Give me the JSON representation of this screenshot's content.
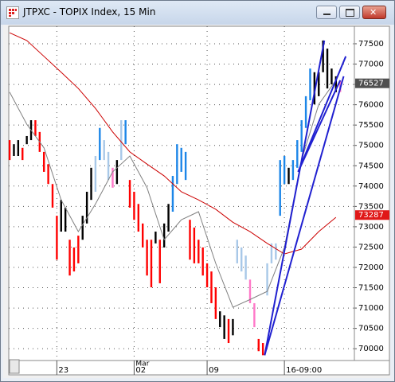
{
  "window": {
    "title": "JTPXC - TOPIX Index, 15 Min"
  },
  "chart_data": {
    "type": "range_bar",
    "high": [
      75130,
      75030,
      75130,
      74940,
      75230,
      75620,
      75620,
      75330,
      74840,
      74540,
      74050,
      73270,
      73660,
      73470,
      72680,
      72490,
      72780,
      73270,
      73860,
      74450,
      74740,
      75430,
      75130,
      74840,
      74450,
      74640,
      75620,
      75620,
      74150,
      73860,
      73560,
      73080,
      72680,
      72680,
      72880,
      72680,
      73080,
      73560,
      74250,
      75030,
      74940,
      74840,
      73170,
      72980,
      72680,
      72490,
      72100,
      71900,
      71510,
      70920,
      70820,
      70730,
      70730,
      72680,
      72490,
      72290,
      71700,
      71120,
      70240,
      70140,
      72100,
      72590,
      72590,
      74640,
      74740,
      74450,
      74640,
      75130,
      75620,
      76210,
      76890,
      76800,
      76800,
      77580,
      77380,
      76890,
      76700,
      76600
    ],
    "low": [
      74640,
      74740,
      74740,
      74640,
      75030,
      75130,
      75230,
      74840,
      74350,
      74050,
      73470,
      72190,
      72880,
      72880,
      71800,
      71900,
      72100,
      72680,
      73080,
      73660,
      73860,
      74640,
      74640,
      74150,
      73960,
      74050,
      74640,
      75030,
      73470,
      73170,
      72880,
      72490,
      71800,
      71510,
      72590,
      71610,
      72490,
      72880,
      73370,
      74050,
      74350,
      74150,
      72190,
      72100,
      72100,
      71800,
      71510,
      71120,
      70730,
      70530,
      70240,
      70140,
      70330,
      72100,
      71900,
      71700,
      71120,
      70530,
      69940,
      69840,
      71310,
      72100,
      72190,
      73270,
      74050,
      74050,
      74150,
      74450,
      74840,
      75430,
      76110,
      76010,
      76210,
      76800,
      76400,
      76500,
      76310,
      76310
    ],
    "colors": [
      "#ff0000",
      "#000000",
      "#000000",
      "#ff0000",
      "#000000",
      "#000000",
      "#ff0000",
      "#ff0000",
      "#ff0000",
      "#ff0000",
      "#ff0000",
      "#ff0000",
      "#000000",
      "#000000",
      "#ff0000",
      "#ff0000",
      "#ff0000",
      "#000000",
      "#000000",
      "#000000",
      "#a8c8e8",
      "#1c86e8",
      "#a8c8e8",
      "#a8c8e8",
      "#ff78c8",
      "#000000",
      "#a8c8e8",
      "#1c86e8",
      "#ff0000",
      "#ff0000",
      "#ff0000",
      "#ff0000",
      "#ff0000",
      "#ff0000",
      "#000000",
      "#ff0000",
      "#000000",
      "#000000",
      "#1c86e8",
      "#1c86e8",
      "#1c86e8",
      "#1c86e8",
      "#ff0000",
      "#ff0000",
      "#ff0000",
      "#ff0000",
      "#ff0000",
      "#ff0000",
      "#ff0000",
      "#000000",
      "#000000",
      "#ff0000",
      "#000000",
      "#a8c8e8",
      "#a8c8e8",
      "#a8c8e8",
      "#ff78c8",
      "#ff78c8",
      "#ff0000",
      "#ff0000",
      "#a8c8e8",
      "#a8c8e8",
      "#a8c8e8",
      "#1c86e8",
      "#1c86e8",
      "#000000",
      "#1c86e8",
      "#1c86e8",
      "#1c86e8",
      "#1c86e8",
      "#1c86e8",
      "#000000",
      "#000000",
      "#000000",
      "#000000",
      "#000000",
      "#000000",
      "#ff78c8"
    ],
    "lines": [
      {
        "color": "#808080",
        "x": [
          0,
          4,
          8,
          12,
          16,
          20,
          24,
          28,
          32,
          36,
          40,
          44,
          48,
          52,
          56,
          60,
          64,
          68,
          72,
          76
        ],
        "values": [
          76310,
          75520,
          74940,
          73660,
          72880,
          73560,
          74350,
          74740,
          73960,
          72680,
          73170,
          73370,
          72100,
          71020,
          71210,
          71410,
          72490,
          74640,
          76010,
          76600
        ]
      },
      {
        "color": "#cc0000",
        "x": [
          0,
          4,
          8,
          12,
          16,
          20,
          24,
          28,
          32,
          36,
          40,
          44,
          48,
          52,
          56,
          60,
          64,
          68,
          72,
          76
        ],
        "values": [
          77770,
          77580,
          77190,
          76800,
          76400,
          75910,
          75330,
          74840,
          74540,
          74250,
          73860,
          73660,
          73430,
          73110,
          72880,
          72590,
          72330,
          72450,
          72880,
          73230
        ]
      }
    ],
    "trendlines": [
      {
        "color": "#2020d0",
        "x": [
          59.4,
          73.3
        ],
        "values": [
          69840,
          77580
        ]
      },
      {
        "color": "#2020d0",
        "x": [
          59.4,
          77.8
        ],
        "values": [
          69840,
          76700
        ]
      },
      {
        "color": "#2020d0",
        "x": [
          67.2,
          78.3
        ],
        "values": [
          74350,
          77190
        ]
      },
      {
        "color": "#2020d0",
        "x": [
          67.2,
          77
        ],
        "values": [
          74350,
          76600
        ]
      }
    ],
    "price_tags": [
      {
        "value": 76527,
        "color": "#505050"
      },
      {
        "value": 73287,
        "color": "#e01818"
      }
    ],
    "xlim": [
      -0.2,
      80.3
    ],
    "ylim": [
      69710,
      77930
    ],
    "yticks": [
      70000,
      70500,
      71000,
      71500,
      72000,
      72500,
      73000,
      73500,
      74000,
      74500,
      75000,
      75500,
      76000,
      76500,
      77000,
      77500
    ],
    "xticks": [
      {
        "value": 11,
        "label": "23"
      },
      {
        "value": 29,
        "label": "02"
      },
      {
        "value": 46,
        "label": "09"
      },
      {
        "value": 64,
        "label": "16-09:00"
      }
    ],
    "xticks_upper": [
      {
        "value": 29,
        "label": "Mar"
      }
    ],
    "grid": true
  }
}
